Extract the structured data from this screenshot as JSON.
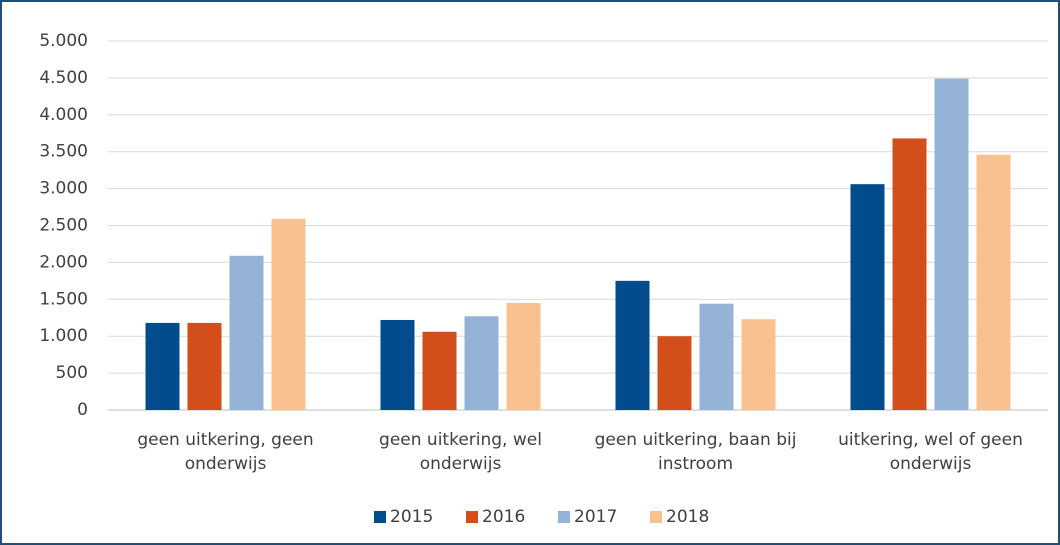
{
  "chart_data": {
    "type": "bar",
    "categories": [
      "geen uitkering, geen onderwijs",
      "geen uitkering, wel onderwijs",
      "geen uitkering, baan bij instroom",
      "uitkering, wel of geen onderwijs"
    ],
    "series": [
      {
        "name": "2015",
        "color": "#004c8c",
        "values": [
          1180,
          1220,
          1750,
          3060
        ]
      },
      {
        "name": "2016",
        "color": "#d24e1a",
        "values": [
          1180,
          1060,
          1000,
          3680
        ]
      },
      {
        "name": "2017",
        "color": "#95b3d7",
        "values": [
          2090,
          1270,
          1440,
          4490
        ]
      },
      {
        "name": "2018",
        "color": "#f9c18f",
        "values": [
          2590,
          1450,
          1230,
          3460
        ]
      }
    ],
    "ylim": [
      0,
      5000
    ],
    "yticks": [
      0,
      500,
      {
        "value": 1000,
        "label": "1.000"
      },
      {
        "value": 1500,
        "label": "1.500"
      },
      {
        "value": 2000,
        "label": "2.000"
      },
      {
        "value": 2500,
        "label": "2.500"
      },
      {
        "value": 3000,
        "label": "3.000"
      },
      {
        "value": 3500,
        "label": "3.500"
      },
      {
        "value": 4000,
        "label": "4.000"
      },
      {
        "value": 4500,
        "label": "4.500"
      },
      {
        "value": 5000,
        "label": "5.000"
      }
    ],
    "grid": true,
    "legend": "bottom"
  }
}
